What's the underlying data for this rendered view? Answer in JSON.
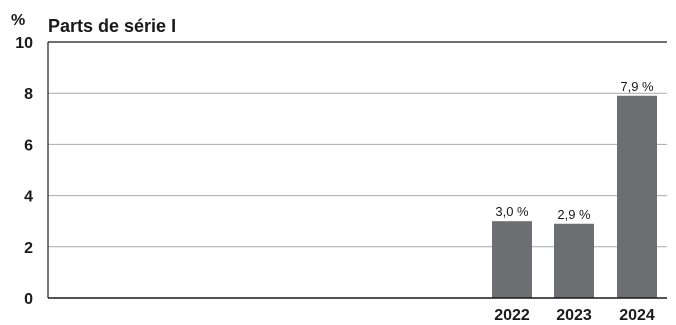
{
  "chart_data": {
    "type": "bar",
    "title": "Parts de série I",
    "unit_label": "%",
    "xlabel": "",
    "ylabel": "",
    "ylim": [
      0,
      10
    ],
    "y_ticks": [
      "0",
      "2",
      "4",
      "6",
      "8",
      "10"
    ],
    "y_tick_values": [
      0,
      2,
      4,
      6,
      8,
      10
    ],
    "grid": true,
    "legend": "none",
    "categories": [
      "2022",
      "2023",
      "2024"
    ],
    "values": [
      3.0,
      2.9,
      7.9
    ],
    "data_labels": [
      "3,0 %",
      "2,9 %",
      "7,9 %"
    ],
    "bar_color": "#6d6e71",
    "grid_color": "#a7a9ac",
    "axis_color": "#1a1a1a"
  }
}
